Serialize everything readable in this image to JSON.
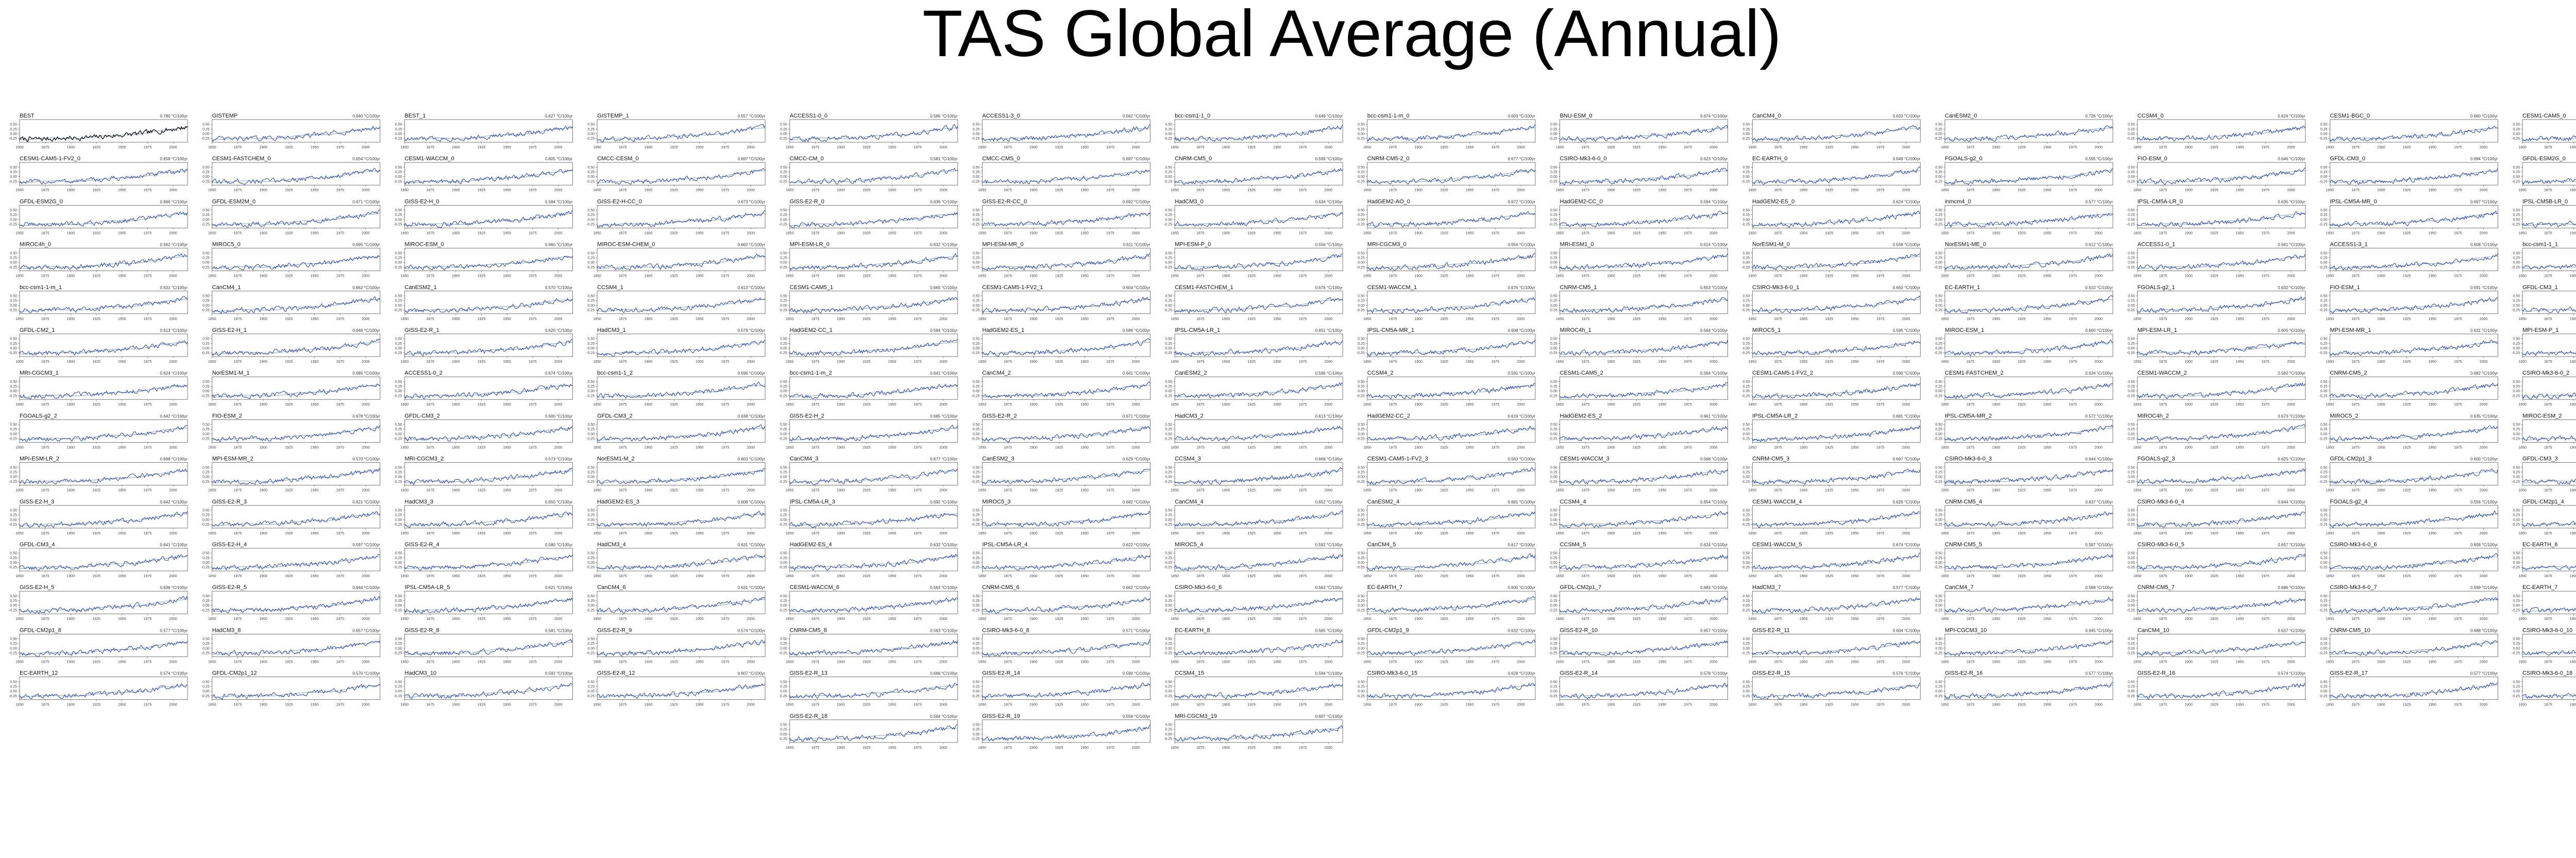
{
  "title": "TAS Global Average (Annual)",
  "colors": {
    "observed": "#000000",
    "model": "#1f3fb3",
    "baseline": "#2f5f8f",
    "axis": "#555555"
  },
  "chart_data": {
    "type": "line",
    "layout": "small-multiples",
    "xlim": [
      1850,
      2014
    ],
    "x_ticks": [
      "1850",
      "1875",
      "1900",
      "1925",
      "1950",
      "1975",
      "2000"
    ],
    "y_ticks": [
      "0.50",
      "0.25",
      "0.00",
      "-0.25"
    ],
    "panel_names": [
      [
        "BEST",
        "GISTEMP",
        "BEST_1",
        "GISTEMP_1",
        "ACCESS1-0_0",
        "ACCESS1-3_0",
        "bcc-csm1-1_0",
        "bcc-csm1-1-m_0",
        "BNU-ESM_0",
        "CanCM4_0",
        "CanESM2_0",
        "CCSM4_0",
        "CESM1-BGC_0",
        "CESM1-CAM5_0"
      ],
      [
        "CESM1-CAM5-1-FV2_0",
        "CESM1-FASTCHEM_0",
        "CESM1-WACCM_0",
        "CMCC-CESM_0",
        "CMCC-CM_0",
        "CMCC-CMS_0",
        "CNRM-CM5_0",
        "CNRM-CM5-2_0",
        "CSIRO-Mk3-6-0_0",
        "EC-EARTH_0",
        "FGOALS-g2_0",
        "FIO-ESM_0",
        "GFDL-CM3_0",
        "GFDL-ESM2G_0"
      ],
      [
        "GFDL-ESM2G_0",
        "GFDL-ESM2M_0",
        "GISS-E2-H_0",
        "GISS-E2-H-CC_0",
        "GISS-E2-R_0",
        "GISS-E2-R-CC_0",
        "HadCM3_0",
        "HadGEM2-AO_0",
        "HadGEM2-CC_0",
        "HadGEM2-ES_0",
        "inmcm4_0",
        "IPSL-CM5A-LR_0",
        "IPSL-CM5A-MR_0",
        "IPSL-CM5B-LR_0"
      ],
      [
        "MIROC4h_0",
        "MIROC5_0",
        "MIROC-ESM_0",
        "MIROC-ESM-CHEM_0",
        "MPI-ESM-LR_0",
        "MPI-ESM-MR_0",
        "MPI-ESM-P_0",
        "MRI-CGCM3_0",
        "MRI-ESM1_0",
        "NorESM1-M_0",
        "NorESM1-ME_0",
        "ACCESS1-0_1",
        "ACCESS1-3_1",
        "bcc-csm1-1_1"
      ],
      [
        "bcc-csm1-1-m_1",
        "CanCM4_1",
        "CanESM2_1",
        "CCSM4_1",
        "CESM1-CAM5_1",
        "CESM1-CAM5-1-FV2_1",
        "CESM1-FASTCHEM_1",
        "CESM1-WACCM_1",
        "CNRM-CM5_1",
        "CSIRO-Mk3-6-0_1",
        "EC-EARTH_1",
        "FGOALS-g2_1",
        "FIO-ESM_1",
        "GFDL-CM3_1"
      ],
      [
        "GFDL-CM2_1",
        "GISS-E2-H_1",
        "GISS-E2-R_1",
        "HadCM3_1",
        "HadGEM2-CC_1",
        "HadGEM2-ES_1",
        "IPSL-CM5A-LR_1",
        "IPSL-CM5A-MR_1",
        "MIROC4h_1",
        "MIROC5_1",
        "MIROC-ESM_1",
        "MPI-ESM-LR_1",
        "MPI-ESM-MR_1",
        "MPI-ESM-P_1"
      ],
      [
        "MRI-CGCM3_1",
        "NorESM1-M_1",
        "ACCESS1-0_2",
        "bcc-csm1-1_2",
        "bcc-csm1-1-m_2",
        "CanCM4_2",
        "CanESM2_2",
        "CCSM4_2",
        "CESM1-CAM5_2",
        "CESM1-CAM5-1-FV2_2",
        "CESM1-FASTCHEM_2",
        "CESM1-WACCM_2",
        "CNRM-CM5_2",
        "CSIRO-Mk3-6-0_2"
      ],
      [
        "FGOALS-g2_2",
        "FIO-ESM_2",
        "GFDL-CM3_2",
        "GFDL-CM3_2",
        "GISS-E2-H_2",
        "GISS-E2-R_2",
        "HadCM3_2",
        "HadGEM2-CC_2",
        "HadGEM2-ES_2",
        "IPSL-CM5A-LR_2",
        "IPSL-CM5A-MR_2",
        "MIROC4h_2",
        "MIROC5_2",
        "MIROC-ESM_2"
      ],
      [
        "MPI-ESM-LR_2",
        "MPI-ESM-MR_2",
        "MRI-CGCM3_2",
        "NorESM1-M_2",
        "CanCM4_3",
        "CanESM2_3",
        "CCSM4_3",
        "CESM1-CAM5-1-FV2_3",
        "CESM1-WACCM_3",
        "CNRM-CM5_3",
        "CSIRO-Mk3-6-0_3",
        "FGOALS-g2_3",
        "GFDL-CM2p1_3",
        "GFDL-CM3_3"
      ],
      [
        "GISS-E2-H_3",
        "GISS-E2-R_3",
        "HadCM3_3",
        "HadGEM2-ES_3",
        "IPSL-CM5A-LR_3",
        "MIROC5_3",
        "CanCM4_4",
        "CanESM2_4",
        "CCSM4_4",
        "CESM1-WACCM_4",
        "CNRM-CM5_4",
        "CSIRO-Mk3-6-0_4",
        "FGOALS-g2_4",
        "GFDL-CM2p1_4"
      ],
      [
        "GFDL-CM3_4",
        "GISS-E2-H_4",
        "GISS-E2-R_4",
        "HadCM3_4",
        "HadGEM2-ES_4",
        "IPSL-CM5A-LR_4",
        "MIROC5_4",
        "CanCM4_5",
        "CCSM4_5",
        "CESM1-WACCM_5",
        "CNRM-CM5_5",
        "CSIRO-Mk3-6-0_5",
        "CSIRO-Mk3-6-0_6",
        "EC-EARTH_6"
      ],
      [
        "GISS-E2-H_5",
        "GISS-E2-R_5",
        "IPSL-CM5A-LR_5",
        "CanCM4_6",
        "CESM1-WACCM_6",
        "CNRM-CM5_6",
        "CSIRO-Mk3-6-0_6",
        "EC-EARTH_7",
        "GFDL-CM2p1_7",
        "HadCM3_7",
        "CanCM4_7",
        "CNRM-CM5_7",
        "CSIRO-Mk3-6-0_7",
        "EC-EARTH_7"
      ],
      [
        "GFDL-CM2p1_8",
        "HadCM3_8",
        "GISS-E2-R_8",
        "GISS-E2-R_9",
        "CNRM-CM5_8",
        "CSIRO-Mk3-6-0_8",
        "EC-EARTH_8",
        "GFDL-CM2p1_9",
        "GISS-E2-R_10",
        "GISS-E2-R_11",
        "MPI-CGCM3_10",
        "CanCM4_10",
        "CNRM-CM5_10",
        "CSIRO-Mk3-6-0_10"
      ],
      [
        "EC-EARTH_12",
        "GFDL-CM2p1_12",
        "HadCM3_10",
        "GISS-E2-R_12",
        "GISS-E2-R_13",
        "GISS-E2-R_14",
        "CCSM4_15",
        "CSIRO-Mk3-6-0_15",
        "GISS-E2-R_14",
        "GISS-E2-R_15",
        "GISS-E2-R_16",
        "GISS-E2-R_16",
        "GISS-E2-R_17",
        "CSIRO-Mk3-6-0_18"
      ],
      [
        "GISS-E2-R_18",
        "GISS-E2-R_19",
        "MRI-CGCM3_19"
      ]
    ],
    "trend_labels": [
      [
        "0.780 °C/100yr",
        "0.640 °C/100yr",
        "0.627 °C/100yr",
        "0.557 °C/100yr",
        "0.586 °C/100yr",
        "0.562 °C/100yr",
        "0.649 °C/100yr",
        "0.603 °C/100yr",
        "0.674 °C/100yr",
        "0.633 °C/100yr",
        "0.726 °C/100yr",
        "0.624 °C/100yr",
        "0.660 °C/100yr",
        "0.566 °C/100yr"
      ],
      [
        "0.658 °C/100yr",
        "0.654 °C/100yr",
        "0.605 °C/100yr",
        "0.697 °C/100yr",
        "0.581 °C/100yr",
        "0.697 °C/100yr",
        "0.599 °C/100yr",
        "0.677 °C/100yr",
        "0.623 °C/100yr",
        "0.649 °C/100yr",
        "0.595 °C/100yr",
        "0.646 °C/100yr",
        "0.694 °C/100yr",
        "0.563 °C/100yr"
      ],
      [
        "0.666 °C/100yr",
        "0.671 °C/100yr",
        "0.584 °C/100yr",
        "0.673 °C/100yr",
        "0.636 °C/100yr",
        "0.692 °C/100yr",
        "0.634 °C/100yr",
        "0.672 °C/100yr",
        "0.594 °C/100yr",
        "0.624 °C/100yr",
        "0.577 °C/100yr",
        "0.635 °C/100yr",
        "0.697 °C/100yr",
        "0.599 °C/100yr"
      ],
      [
        "0.562 °C/100yr",
        "0.695 °C/100yr",
        "0.660 °C/100yr",
        "0.662 °C/100yr",
        "0.632 °C/100yr",
        "0.611 °C/100yr",
        "0.556 °C/100yr",
        "0.654 °C/100yr",
        "0.614 °C/100yr",
        "0.558 °C/100yr",
        "0.612 °C/100yr",
        "0.581 °C/100yr",
        "0.608 °C/100yr",
        "0.652 °C/100yr"
      ],
      [
        "0.631 °C/100yr",
        "0.662 °C/100yr",
        "0.570 °C/100yr",
        "0.613 °C/100yr",
        "0.665 °C/100yr",
        "0.604 °C/100yr",
        "0.676 °C/100yr",
        "0.676 °C/100yr",
        "0.653 °C/100yr",
        "0.650 °C/100yr",
        "0.610 °C/100yr",
        "0.632 °C/100yr",
        "0.591 °C/100yr",
        "0.569 °C/100yr"
      ],
      [
        "0.613 °C/100yr",
        "0.646 °C/100yr",
        "0.620 °C/100yr",
        "0.579 °C/100yr",
        "0.594 °C/100yr",
        "0.589 °C/100yr",
        "0.651 °C/100yr",
        "0.608 °C/100yr",
        "0.564 °C/100yr",
        "0.595 °C/100yr",
        "0.600 °C/100yr",
        "0.605 °C/100yr",
        "0.631 °C/100yr",
        "0.651 °C/100yr"
      ],
      [
        "0.624 °C/100yr",
        "0.685 °C/100yr",
        "0.674 °C/100yr",
        "0.596 °C/100yr",
        "0.641 °C/100yr",
        "0.641 °C/100yr",
        "0.596 °C/100yr",
        "0.591 °C/100yr",
        "0.564 °C/100yr",
        "0.590 °C/100yr",
        "0.634 °C/100yr",
        "0.582 °C/100yr",
        "0.682 °C/100yr",
        "0.604 °C/100yr"
      ],
      [
        "0.642 °C/100yr",
        "0.678 °C/100yr",
        "0.600 °C/100yr",
        "0.638 °C/100yr",
        "0.685 °C/100yr",
        "0.671 °C/100yr",
        "0.613 °C/100yr",
        "0.619 °C/100yr",
        "0.661 °C/100yr",
        "0.681 °C/100yr",
        "0.572 °C/100yr",
        "0.673 °C/100yr",
        "0.635 °C/100yr",
        "0.694 °C/100yr"
      ],
      [
        "0.698 °C/100yr",
        "0.570 °C/100yr",
        "0.573 °C/100yr",
        "0.603 °C/100yr",
        "0.677 °C/100yr",
        "0.629 °C/100yr",
        "0.668 °C/100yr",
        "0.563 °C/100yr",
        "0.568 °C/100yr",
        "0.697 °C/100yr",
        "0.644 °C/100yr",
        "0.625 °C/100yr",
        "0.600 °C/100yr",
        "0.571 °C/100yr"
      ],
      [
        "0.642 °C/100yr",
        "0.621 °C/100yr",
        "0.650 °C/100yr",
        "0.608 °C/100yr",
        "0.692 °C/100yr",
        "0.682 °C/100yr",
        "0.652 °C/100yr",
        "0.681 °C/100yr",
        "0.654 °C/100yr",
        "0.626 °C/100yr",
        "0.637 °C/100yr",
        "0.644 °C/100yr",
        "0.556 °C/100yr",
        "0.641 °C/100yr"
      ],
      [
        "0.641 °C/100yr",
        "0.597 °C/100yr",
        "0.580 °C/100yr",
        "0.631 °C/100yr",
        "0.632 °C/100yr",
        "0.622 °C/100yr",
        "0.592 °C/100yr",
        "0.617 °C/100yr",
        "0.624 °C/100yr",
        "0.674 °C/100yr",
        "0.587 °C/100yr",
        "0.657 °C/100yr",
        "0.658 °C/100yr",
        "0.554 °C/100yr"
      ],
      [
        "0.636 °C/100yr",
        "0.644 °C/100yr",
        "0.621 °C/100yr",
        "0.631 °C/100yr",
        "0.563 °C/100yr",
        "0.662 °C/100yr",
        "0.563 °C/100yr",
        "0.600 °C/100yr",
        "0.683 °C/100yr",
        "0.577 °C/100yr",
        "0.589 °C/100yr",
        "0.686 °C/100yr",
        "0.599 °C/100yr",
        "0.630 °C/100yr"
      ],
      [
        "0.577 °C/100yr",
        "0.657 °C/100yr",
        "0.581 °C/100yr",
        "0.574 °C/100yr",
        "0.563 °C/100yr",
        "0.571 °C/100yr",
        "0.585 °C/100yr",
        "0.632 °C/100yr",
        "0.657 °C/100yr",
        "0.604 °C/100yr",
        "0.645 °C/100yr",
        "0.637 °C/100yr",
        "0.688 °C/100yr",
        "0.563 °C/100yr"
      ],
      [
        "0.574 °C/100yr",
        "0.570 °C/100yr",
        "0.592 °C/100yr",
        "0.607 °C/100yr",
        "0.666 °C/100yr",
        "0.599 °C/100yr",
        "0.584 °C/100yr",
        "0.628 °C/100yr",
        "0.578 °C/100yr",
        "0.576 °C/100yr",
        "0.577 °C/100yr",
        "0.574 °C/100yr",
        "0.577 °C/100yr",
        "0.612 °C/100yr"
      ],
      [
        "0.564 °C/100yr",
        "0.558 °C/100yr",
        "0.607 °C/100yr"
      ]
    ]
  }
}
